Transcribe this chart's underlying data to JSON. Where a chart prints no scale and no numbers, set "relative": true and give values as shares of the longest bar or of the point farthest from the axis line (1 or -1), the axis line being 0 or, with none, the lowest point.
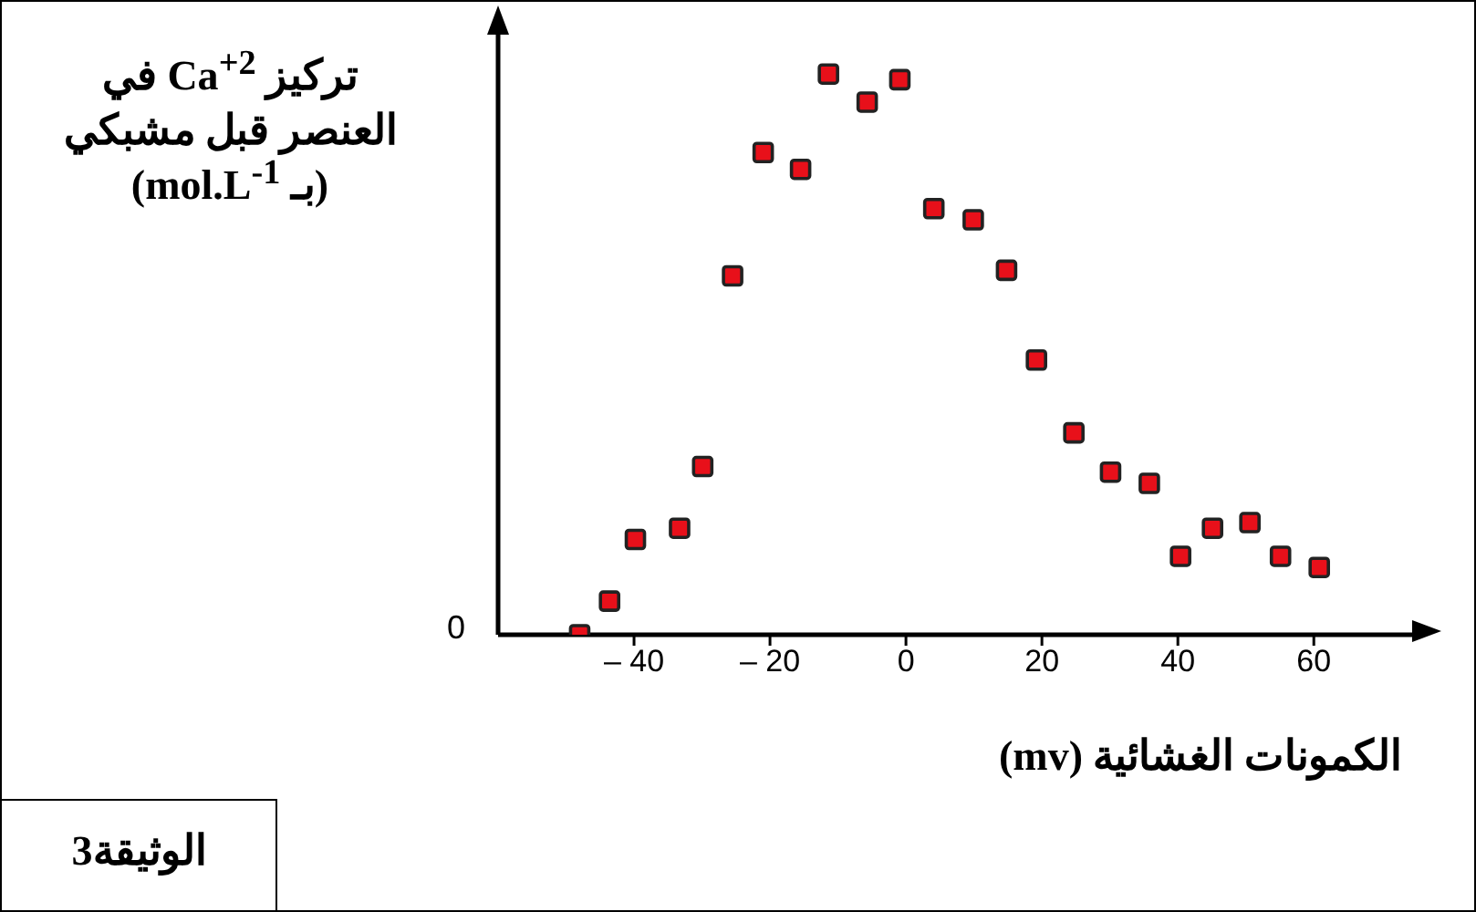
{
  "chart_data": {
    "type": "scatter",
    "relative": true,
    "xlabel": "الكمونات الغشائية (mv)",
    "ylabel": "تركيز Ca$^{+2}$ في العنصر قبل مشبكي (بـ mol.L$^{-1}$)",
    "annotations": [
      "0",
      "الوثيقة3"
    ],
    "x": [
      -48,
      -43.6,
      -39.8,
      -33.3,
      -29.9,
      -25.5,
      -21,
      -15.5,
      -11.4,
      -5.7,
      -0.9,
      4.1,
      9.9,
      14.8,
      19.2,
      24.7,
      30.1,
      35.8,
      40.4,
      45.1,
      50.6,
      55.1,
      60.8
    ],
    "values": [
      0,
      0.06,
      0.17,
      0.19,
      0.3,
      0.64,
      0.86,
      0.83,
      1,
      0.95,
      0.99,
      0.76,
      0.74,
      0.65,
      0.49,
      0.36,
      0.29,
      0.27,
      0.14,
      0.19,
      0.2,
      0.14,
      0.12
    ],
    "color": "#e8101a",
    "xlim": [
      -60,
      75
    ],
    "xticks": [
      {
        "value": -40,
        "label": "– 40"
      },
      {
        "value": -20,
        "label": "– 20"
      },
      0,
      20,
      40,
      60
    ],
    "marker": "square",
    "grid": false,
    "legend": false
  }
}
